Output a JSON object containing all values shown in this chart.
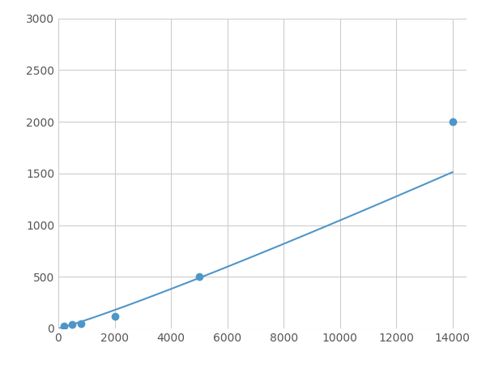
{
  "x_points": [
    200,
    500,
    800,
    2000,
    5000,
    14000
  ],
  "y_points": [
    20,
    40,
    50,
    120,
    500,
    2000
  ],
  "line_color": "#4f96c8",
  "marker_color": "#4f96c8",
  "marker_size": 6,
  "xlim": [
    0,
    14500
  ],
  "ylim": [
    0,
    3000
  ],
  "xticks": [
    0,
    2000,
    4000,
    6000,
    8000,
    10000,
    12000,
    14000
  ],
  "yticks": [
    0,
    500,
    1000,
    1500,
    2000,
    2500,
    3000
  ],
  "grid_color": "#cccccc",
  "background_color": "#ffffff",
  "line_width": 1.5
}
